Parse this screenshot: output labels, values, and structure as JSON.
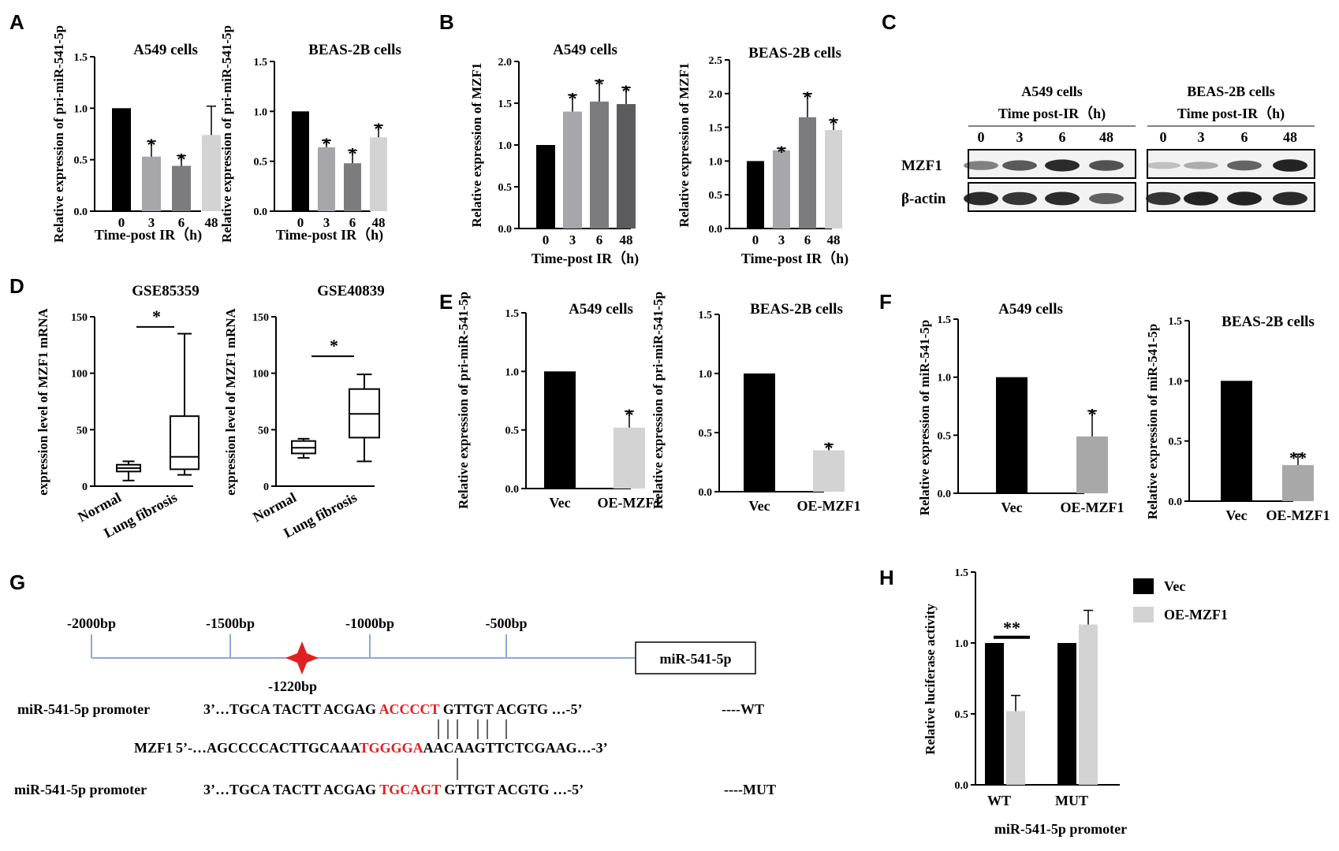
{
  "chart_data": [
    {
      "id": "A1",
      "panel": "A",
      "type": "bar",
      "title": "A549 cells",
      "ylabel": "Relative expression of pri-miR-541-5p",
      "xlabel": "Time-post IR（h)",
      "ylim": [
        0,
        1.5
      ],
      "yticks": [
        "0.0",
        "0.5",
        "1.0",
        "1.5"
      ],
      "categories": [
        "0",
        "3",
        "6",
        "48"
      ],
      "values": [
        1.0,
        0.53,
        0.44,
        0.74
      ],
      "errors": [
        0,
        0.15,
        0.1,
        0.28
      ],
      "sig": [
        "",
        "*",
        "*",
        ""
      ]
    },
    {
      "id": "A2",
      "type": "bar",
      "title": "BEAS-2B cells",
      "ylabel": "Relative expression of pri-miR-541-5p",
      "xlabel": "Time-post  IR（h)",
      "ylim": [
        0,
        1.5
      ],
      "yticks": [
        "0.0",
        "0.5",
        "1.0",
        "1.5"
      ],
      "categories": [
        "0",
        "3",
        "6",
        "48"
      ],
      "values": [
        1.0,
        0.64,
        0.48,
        0.74
      ],
      "errors": [
        0,
        0.07,
        0.13,
        0.12
      ],
      "sig": [
        "",
        "*",
        "*",
        "*"
      ]
    },
    {
      "id": "B1",
      "panel": "B",
      "type": "bar",
      "title": "A549 cells",
      "ylabel": "Relative expression of MZF1",
      "xlabel": "Time-post IR（h)",
      "ylim": [
        0,
        2.0
      ],
      "yticks": [
        "0.0",
        "0.5",
        "1.0",
        "1.5",
        "2.0"
      ],
      "categories": [
        "0",
        "3",
        "6",
        "48"
      ],
      "values": [
        1.0,
        1.4,
        1.52,
        1.49
      ],
      "errors": [
        0,
        0.2,
        0.25,
        0.2
      ],
      "sig": [
        "",
        "*",
        "*",
        "*"
      ]
    },
    {
      "id": "B2",
      "type": "bar",
      "title": "BEAS-2B cells",
      "ylabel": "Relative expression of MZF1",
      "xlabel": "Time-post IR（h)",
      "ylim": [
        0,
        2.5
      ],
      "yticks": [
        "0.0",
        "0.5",
        "1.0",
        "1.5",
        "2.0",
        "2.5"
      ],
      "categories": [
        "0",
        "3",
        "6",
        "48"
      ],
      "values": [
        1.0,
        1.16,
        1.65,
        1.46
      ],
      "errors": [
        0,
        0.03,
        0.35,
        0.15
      ],
      "sig": [
        "",
        "*",
        "*",
        "*"
      ]
    },
    {
      "id": "D1",
      "panel": "D",
      "type": "box",
      "title": "GSE85359",
      "ylabel": "expression  level  of  MZF1 mRNA",
      "ylim": [
        0,
        150
      ],
      "yticks": [
        "0",
        "50",
        "100",
        "150"
      ],
      "categories": [
        "Normal",
        "Lung fibrosis"
      ],
      "boxes": [
        {
          "min": 5,
          "q1": 13,
          "median": 16,
          "q3": 19,
          "max": 22
        },
        {
          "min": 10,
          "q1": 15,
          "median": 26,
          "q3": 62,
          "max": 135
        }
      ],
      "sig": "*"
    },
    {
      "id": "D2",
      "type": "box",
      "title": "GSE40839",
      "ylabel": "expression  level  of  MZF1 mRNA",
      "ylim": [
        0,
        150
      ],
      "yticks": [
        "0",
        "50",
        "100",
        "150"
      ],
      "categories": [
        "Normal",
        "Lung fibrosis"
      ],
      "boxes": [
        {
          "min": 25,
          "q1": 29,
          "median": 34,
          "q3": 40,
          "max": 42
        },
        {
          "min": 22,
          "q1": 43,
          "median": 64,
          "q3": 86,
          "max": 99
        }
      ],
      "sig": "*"
    },
    {
      "id": "E1",
      "panel": "E",
      "type": "bar",
      "title": "A549 cells",
      "ylabel": "Relative expression of pri-miR-541-5p",
      "ylim": [
        0,
        1.5
      ],
      "yticks": [
        "0.0",
        "0.5",
        "1.0",
        "1.5"
      ],
      "categories": [
        "Vec",
        "OE-MZF1"
      ],
      "values": [
        1.0,
        0.52
      ],
      "errors": [
        0,
        0.14
      ],
      "sig": [
        "",
        "*"
      ]
    },
    {
      "id": "E2",
      "type": "bar",
      "title": "BEAS-2B cells",
      "ylabel": "Relative expression of pri-miR-541-5p",
      "ylim": [
        0,
        1.5
      ],
      "yticks": [
        "0.0",
        "0.5",
        "1.0",
        "1.5"
      ],
      "categories": [
        "Vec",
        "OE-MZF1"
      ],
      "values": [
        1.0,
        0.35
      ],
      "errors": [
        0,
        0.05
      ],
      "sig": [
        "",
        "*"
      ]
    },
    {
      "id": "F1",
      "panel": "F",
      "type": "bar",
      "title": "A549 cells",
      "ylabel": "Relative expression of  miR-541-5p",
      "ylim": [
        0,
        1.5
      ],
      "yticks": [
        "0.0",
        "0.5",
        "1.0",
        "1.5"
      ],
      "categories": [
        "Vec",
        "OE-MZF1"
      ],
      "values": [
        1.0,
        0.49
      ],
      "errors": [
        0,
        0.22
      ],
      "sig": [
        "",
        "*"
      ]
    },
    {
      "id": "F2",
      "type": "bar",
      "title": "BEAS-2B cells",
      "ylabel": "Relative expression of  miR-541-5p",
      "ylim": [
        0,
        1.5
      ],
      "yticks": [
        "0.0",
        "0.5",
        "1.0",
        "1.5"
      ],
      "categories": [
        "Vec",
        "OE-MZF1"
      ],
      "values": [
        1.0,
        0.3
      ],
      "errors": [
        0,
        0.09
      ],
      "sig": [
        "",
        "**"
      ]
    },
    {
      "id": "H",
      "panel": "H",
      "type": "grouped-bar",
      "ylabel": "Relative luciferase activity",
      "xlabel": "miR-541-5p promoter",
      "ylim": [
        0,
        1.5
      ],
      "yticks": [
        "0.0",
        "0.5",
        "1.0",
        "1.5"
      ],
      "categories": [
        "WT",
        "MUT"
      ],
      "series": [
        {
          "name": "Vec",
          "values": [
            1.0,
            1.0
          ],
          "errors": [
            0,
            0
          ]
        },
        {
          "name": "OE-MZF1",
          "values": [
            0.52,
            1.13
          ],
          "errors": [
            0.11,
            0.1
          ]
        }
      ],
      "legend": "top-right",
      "sig": [
        {
          "category": "WT",
          "label": "**"
        }
      ]
    }
  ],
  "panel_c": {
    "label": "C",
    "left": {
      "cell": "A549 cells",
      "time": "Time post-IR（h)",
      "lanes": [
        "0",
        "3",
        "6",
        "48"
      ],
      "mzf1": [
        0.45,
        0.65,
        0.9,
        0.7
      ],
      "actin": [
        0.9,
        0.85,
        0.9,
        0.6
      ]
    },
    "right": {
      "cell": "BEAS-2B cells",
      "time": "Time post-IR（h)",
      "lanes": [
        "0",
        "3",
        "6",
        "48"
      ],
      "mzf1": [
        0.1,
        0.2,
        0.6,
        0.95
      ],
      "actin": [
        0.85,
        0.95,
        0.95,
        0.9
      ]
    },
    "row_labels": [
      "MZF1",
      "β-actin"
    ]
  },
  "panel_g": {
    "label": "G",
    "positions": [
      "-2000bp",
      "-1500bp",
      "-1000bp",
      "-500bp"
    ],
    "site": "-1220bp",
    "gene_box": "miR-541-5p",
    "rows": [
      {
        "label": "miR-541-5p promoter",
        "pre": "3’…TGCA TACTT ACGAG ",
        "hl": "ACCCCT",
        "post": " GTTGT ACGTG …-5’",
        "tag": "----WT"
      },
      {
        "label": "MZF1",
        "pre": "5’-…AGCCCCACTTGCAAA",
        "hl": "TGGGGA",
        "post": "AACAAGTTCTCGAAG…-3’",
        "tag": ""
      },
      {
        "label": "miR-541-5p promoter",
        "pre": "3’…TGCA TACTT ACGAG ",
        "hl": "TGCAGT",
        "post": " GTTGT ACGTG …-5’",
        "tag": "----MUT"
      }
    ]
  },
  "colors": {
    "c0": "#000000",
    "c1": "#a6a6ab",
    "c2": "#7c7c7f",
    "c3": "#5c5c5e",
    "c4": "#d3d3d3",
    "oe": "#a8a8a8",
    "red": "#e02020",
    "band": "#1a1a1a"
  }
}
